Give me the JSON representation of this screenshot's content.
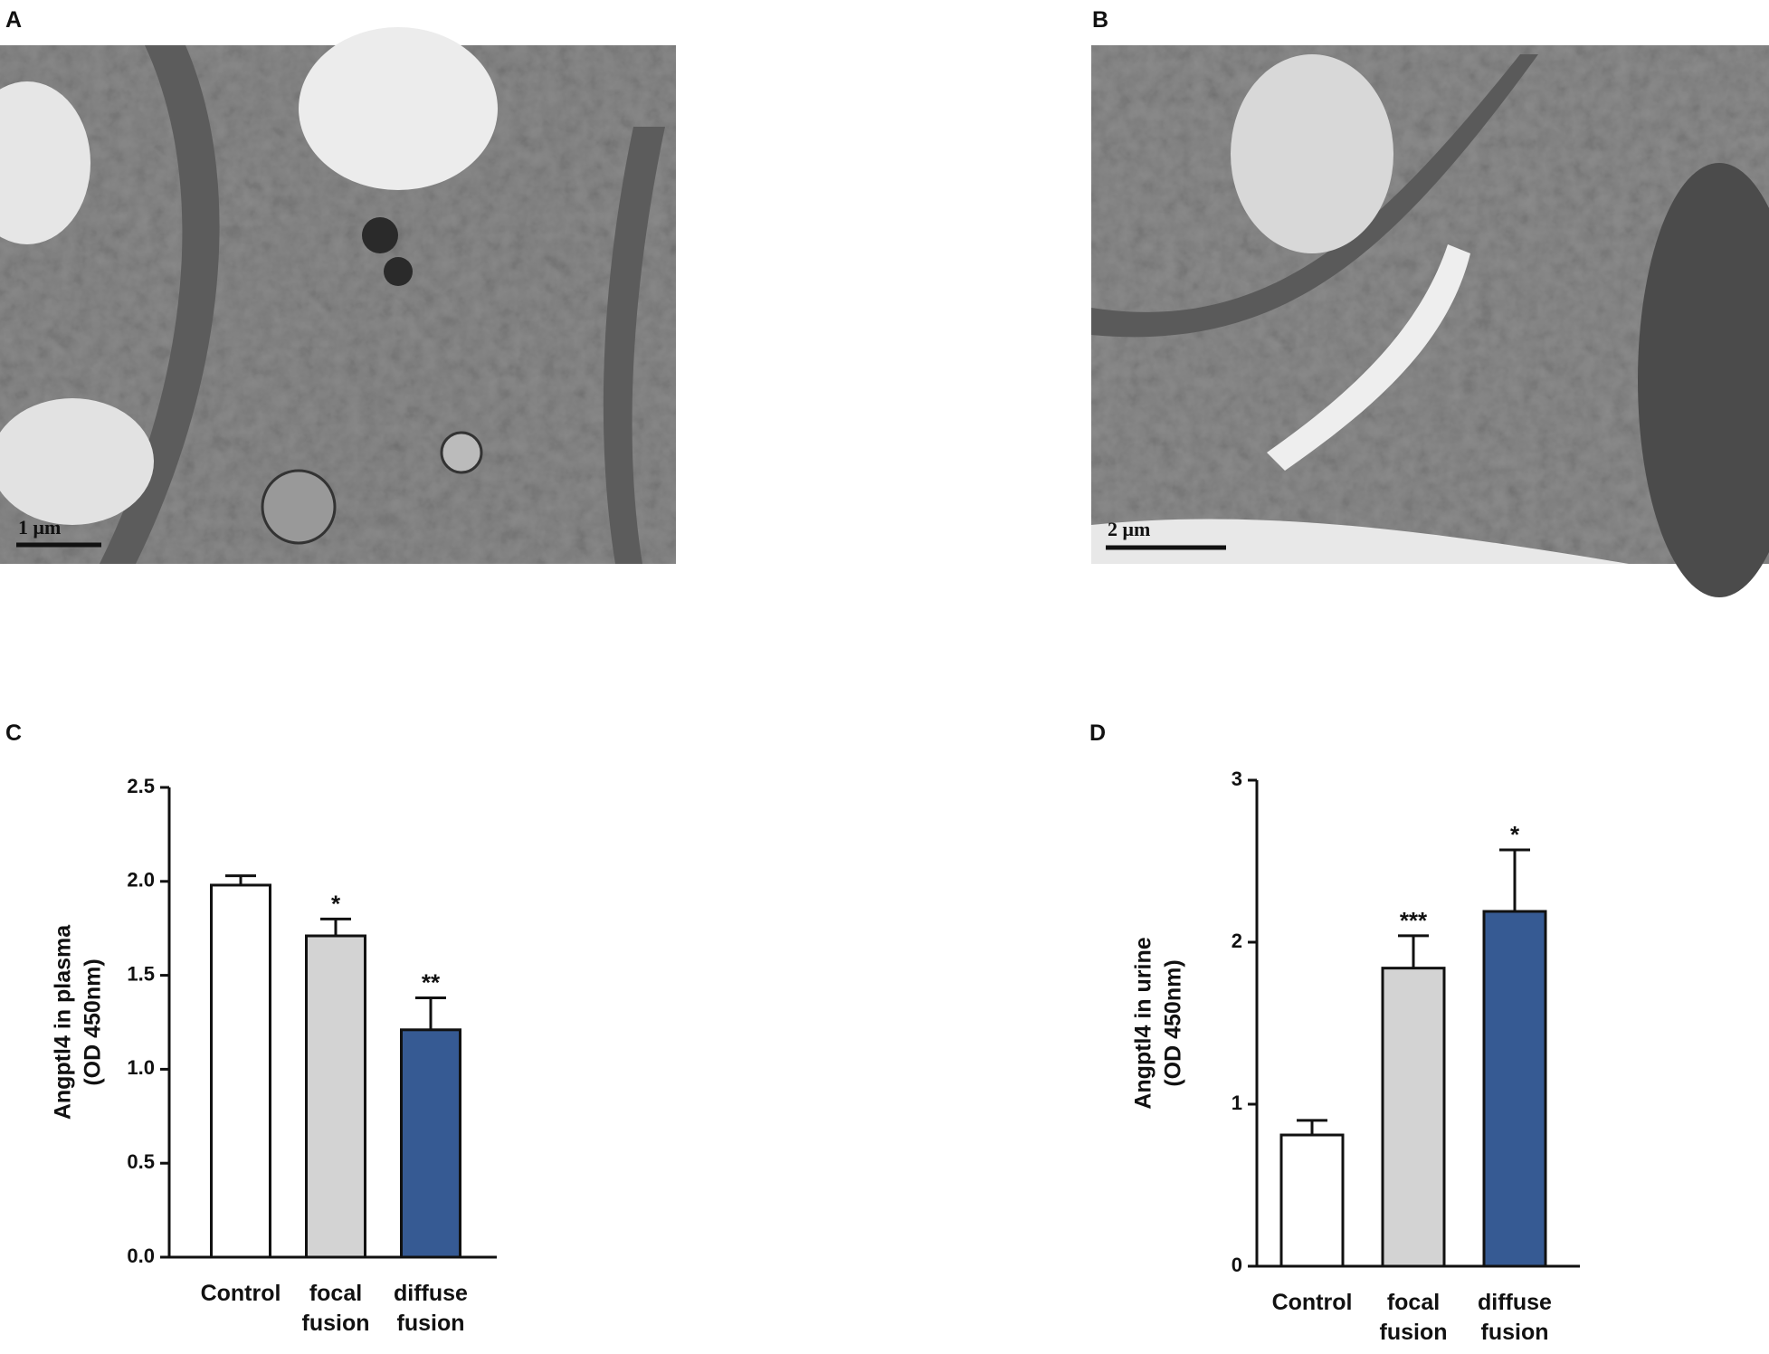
{
  "panel_labels": [
    "A",
    "B",
    "C",
    "D"
  ],
  "micrographs": [
    {
      "scale_bar": "1 μm"
    },
    {
      "scale_bar": "2 μm"
    }
  ],
  "chart_data": [
    {
      "type": "bar",
      "ylabel": [
        "Angptl4 in plasma",
        "(OD 450nm)"
      ],
      "categories": [
        [
          "Control"
        ],
        [
          "focal",
          "fusion"
        ],
        [
          "diffuse",
          "fusion"
        ]
      ],
      "values": [
        1.98,
        1.71,
        1.21
      ],
      "errors": [
        0.05,
        0.09,
        0.17
      ],
      "significance": [
        null,
        "*",
        "**"
      ],
      "colors": [
        "#ffffff",
        "#d3d3d3",
        "#365a93"
      ],
      "ylim": [
        0,
        2.5
      ],
      "yticks": [
        {
          "value": 0,
          "label": "0.0"
        },
        0.5,
        {
          "value": 1,
          "label": "1.0"
        },
        1.5,
        {
          "value": 2,
          "label": "2.0"
        },
        2.5
      ]
    },
    {
      "type": "bar",
      "ylabel": [
        "Angptl4 in urine",
        "(OD 450nm)"
      ],
      "categories": [
        [
          "Control"
        ],
        [
          "focal",
          "fusion"
        ],
        [
          "diffuse",
          "fusion"
        ]
      ],
      "values": [
        0.81,
        1.84,
        2.19
      ],
      "errors": [
        0.09,
        0.2,
        0.38
      ],
      "significance": [
        null,
        "***",
        "*"
      ],
      "colors": [
        "#ffffff",
        "#d3d3d3",
        "#365a93"
      ],
      "ylim": [
        0,
        3
      ],
      "yticks": [
        0,
        1,
        2,
        3
      ]
    }
  ]
}
